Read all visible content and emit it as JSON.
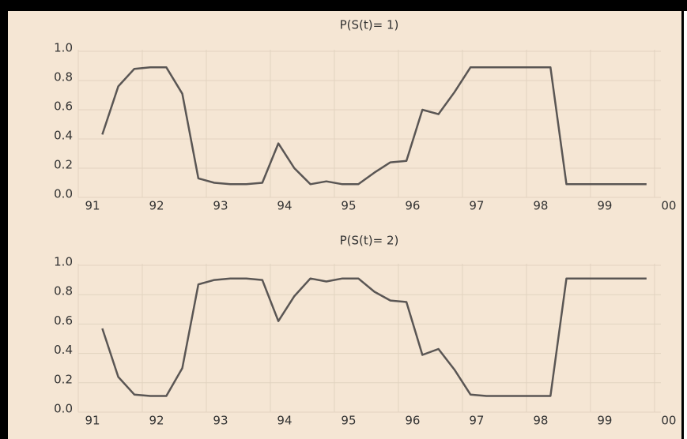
{
  "chart_data": [
    {
      "type": "line",
      "title": "P(S(t)= 1)",
      "x": [
        1991.375,
        1991.625,
        1991.875,
        1992.125,
        1992.375,
        1992.625,
        1992.875,
        1993.125,
        1993.375,
        1993.625,
        1993.875,
        1994.125,
        1994.375,
        1994.625,
        1994.875,
        1995.125,
        1995.375,
        1995.625,
        1995.875,
        1996.125,
        1996.375,
        1996.625,
        1996.875,
        1997.125,
        1997.375,
        1997.625,
        1997.875,
        1998.125,
        1998.375,
        1998.625,
        1998.875,
        1999.125,
        1999.375,
        1999.625,
        1999.875
      ],
      "series": [
        {
          "color": "#5a5654",
          "values": [
            0.43,
            0.76,
            0.88,
            0.89,
            0.89,
            0.71,
            0.13,
            0.1,
            0.09,
            0.09,
            0.1,
            0.37,
            0.2,
            0.09,
            0.11,
            0.09,
            0.09,
            0.17,
            0.24,
            0.25,
            0.6,
            0.57,
            0.72,
            0.89,
            0.89,
            0.89,
            0.89,
            0.89,
            0.89,
            0.09,
            0.09,
            0.09,
            0.09,
            0.09,
            0.09
          ]
        }
      ],
      "xlim": [
        1991,
        2000.1
      ],
      "xticks": [
        {
          "value": 1991,
          "label": "91"
        },
        {
          "value": 1992,
          "label": "92"
        },
        {
          "value": 1993,
          "label": "93"
        },
        {
          "value": 1994,
          "label": "94"
        },
        {
          "value": 1995,
          "label": "95"
        },
        {
          "value": 1996,
          "label": "96"
        },
        {
          "value": 1997,
          "label": "97"
        },
        {
          "value": 1998,
          "label": "98"
        },
        {
          "value": 1999,
          "label": "99"
        },
        {
          "value": 2000,
          "label": "00"
        }
      ],
      "ylim": [
        0,
        1
      ],
      "yticks": [
        {
          "value": 0,
          "label": "0.0"
        },
        0.2,
        0.4,
        0.6,
        0.8,
        {
          "value": 1,
          "label": "1.0"
        }
      ],
      "grid": true
    },
    {
      "type": "line",
      "title": "P(S(t)= 2)",
      "x": [
        1991.375,
        1991.625,
        1991.875,
        1992.125,
        1992.375,
        1992.625,
        1992.875,
        1993.125,
        1993.375,
        1993.625,
        1993.875,
        1994.125,
        1994.375,
        1994.625,
        1994.875,
        1995.125,
        1995.375,
        1995.625,
        1995.875,
        1996.125,
        1996.375,
        1996.625,
        1996.875,
        1997.125,
        1997.375,
        1997.625,
        1997.875,
        1998.125,
        1998.375,
        1998.625,
        1998.875,
        1999.125,
        1999.375,
        1999.625,
        1999.875
      ],
      "series": [
        {
          "color": "#5a5654",
          "values": [
            0.57,
            0.24,
            0.12,
            0.11,
            0.11,
            0.3,
            0.87,
            0.9,
            0.91,
            0.91,
            0.9,
            0.62,
            0.79,
            0.91,
            0.89,
            0.91,
            0.91,
            0.82,
            0.76,
            0.75,
            0.39,
            0.43,
            0.29,
            0.12,
            0.11,
            0.11,
            0.11,
            0.11,
            0.11,
            0.91,
            0.91,
            0.91,
            0.91,
            0.91,
            0.91
          ]
        }
      ],
      "xlim": [
        1991,
        2000.1
      ],
      "xticks": [
        {
          "value": 1991,
          "label": "91"
        },
        {
          "value": 1992,
          "label": "92"
        },
        {
          "value": 1993,
          "label": "93"
        },
        {
          "value": 1994,
          "label": "94"
        },
        {
          "value": 1995,
          "label": "95"
        },
        {
          "value": 1996,
          "label": "96"
        },
        {
          "value": 1997,
          "label": "97"
        },
        {
          "value": 1998,
          "label": "98"
        },
        {
          "value": 1999,
          "label": "99"
        },
        {
          "value": 2000,
          "label": "00"
        }
      ],
      "ylim": [
        0,
        1
      ],
      "yticks": [
        {
          "value": 0,
          "label": "0.0"
        },
        0.2,
        0.4,
        0.6,
        0.8,
        {
          "value": 1,
          "label": "1.0"
        }
      ],
      "grid": true
    }
  ]
}
